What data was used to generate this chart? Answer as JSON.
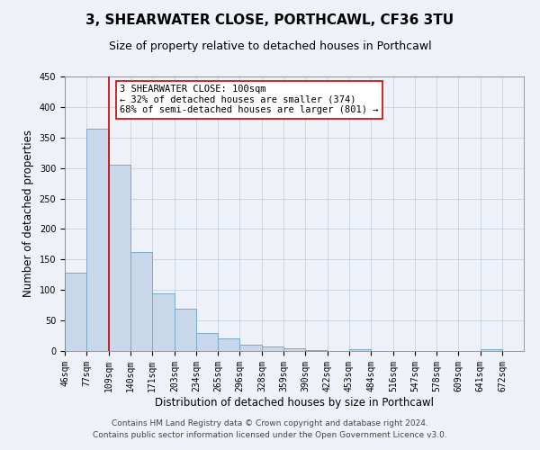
{
  "title": "3, SHEARWATER CLOSE, PORTHCAWL, CF36 3TU",
  "subtitle": "Size of property relative to detached houses in Porthcawl",
  "xlabel": "Distribution of detached houses by size in Porthcawl",
  "ylabel": "Number of detached properties",
  "bar_color": "#c8d8ea",
  "bar_edge_color": "#7aaac8",
  "grid_color": "#c5d0e0",
  "background_color": "#eef2f8",
  "marker_line_x": 109,
  "marker_line_color": "#cc0000",
  "annotation_title": "3 SHEARWATER CLOSE: 100sqm",
  "annotation_line1": "← 32% of detached houses are smaller (374)",
  "annotation_line2": "68% of semi-detached houses are larger (801) →",
  "annotation_box_color": "#ffffff",
  "annotation_box_edge": "#cc0000",
  "bins": [
    46,
    77,
    109,
    140,
    171,
    203,
    234,
    265,
    296,
    328,
    359,
    390,
    422,
    453,
    484,
    516,
    547,
    578,
    609,
    641,
    672
  ],
  "counts": [
    128,
    365,
    305,
    162,
    95,
    70,
    30,
    20,
    10,
    8,
    5,
    2,
    0,
    3,
    0,
    0,
    0,
    0,
    0,
    3
  ],
  "xlim_left": 46,
  "xlim_right": 703,
  "ylim_top": 450,
  "yticks": [
    0,
    50,
    100,
    150,
    200,
    250,
    300,
    350,
    400,
    450
  ],
  "footer1": "Contains HM Land Registry data © Crown copyright and database right 2024.",
  "footer2": "Contains public sector information licensed under the Open Government Licence v3.0.",
  "title_fontsize": 11,
  "subtitle_fontsize": 9,
  "axis_label_fontsize": 8.5,
  "tick_fontsize": 7,
  "annotation_fontsize": 7.5,
  "footer_fontsize": 6.5
}
